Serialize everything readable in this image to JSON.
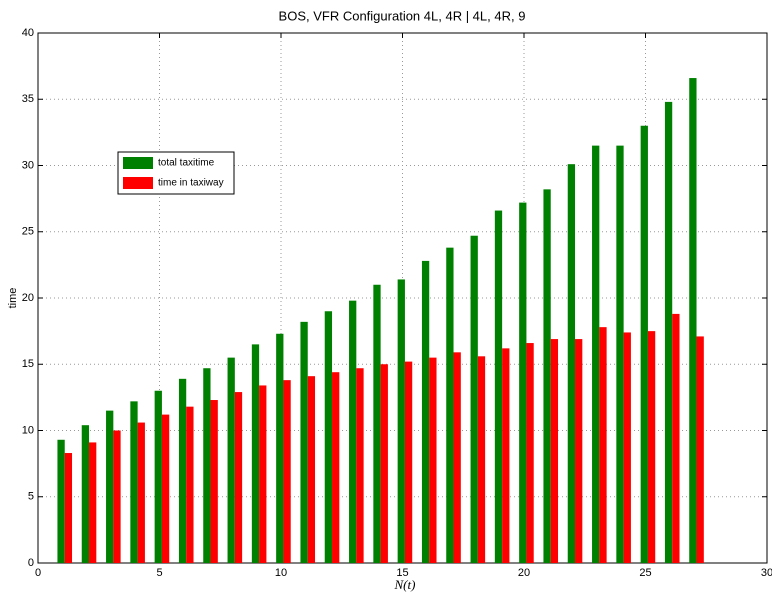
{
  "chart_data": {
    "type": "bar",
    "title": "BOS, VFR Configuration 4L, 4R | 4L, 4R, 9",
    "x_label": "N(t)",
    "y_label": "time",
    "x": [
      1,
      2,
      3,
      4,
      5,
      6,
      7,
      8,
      9,
      10,
      11,
      12,
      13,
      14,
      15,
      16,
      17,
      18,
      19,
      20,
      21,
      22,
      23,
      24,
      25,
      26,
      27
    ],
    "series": [
      {
        "name": "total taxitime",
        "color": "#008000",
        "values": [
          9.3,
          10.4,
          11.5,
          12.2,
          13.0,
          13.9,
          14.7,
          15.5,
          16.5,
          17.3,
          18.2,
          19.0,
          19.8,
          21.0,
          21.4,
          22.8,
          23.8,
          24.7,
          26.6,
          27.2,
          28.2,
          30.1,
          31.5,
          31.5,
          33.0,
          34.8,
          36.6
        ]
      },
      {
        "name": "time in taxiway",
        "color": "#ff0000",
        "values": [
          8.3,
          9.1,
          10.0,
          10.6,
          11.2,
          11.8,
          12.3,
          12.9,
          13.4,
          13.8,
          14.1,
          14.4,
          14.7,
          15.0,
          15.2,
          15.5,
          15.9,
          15.6,
          16.2,
          16.6,
          16.9,
          16.9,
          17.8,
          17.4,
          17.5,
          18.8,
          17.1
        ]
      }
    ],
    "xlim": [
      0,
      30
    ],
    "xticks": [
      0,
      5,
      10,
      15,
      20,
      25,
      30
    ],
    "ylim": [
      0,
      40
    ],
    "yticks": [
      0,
      5,
      10,
      15,
      20,
      25,
      30,
      35,
      40
    ],
    "grid": true,
    "legend": "upper left"
  }
}
